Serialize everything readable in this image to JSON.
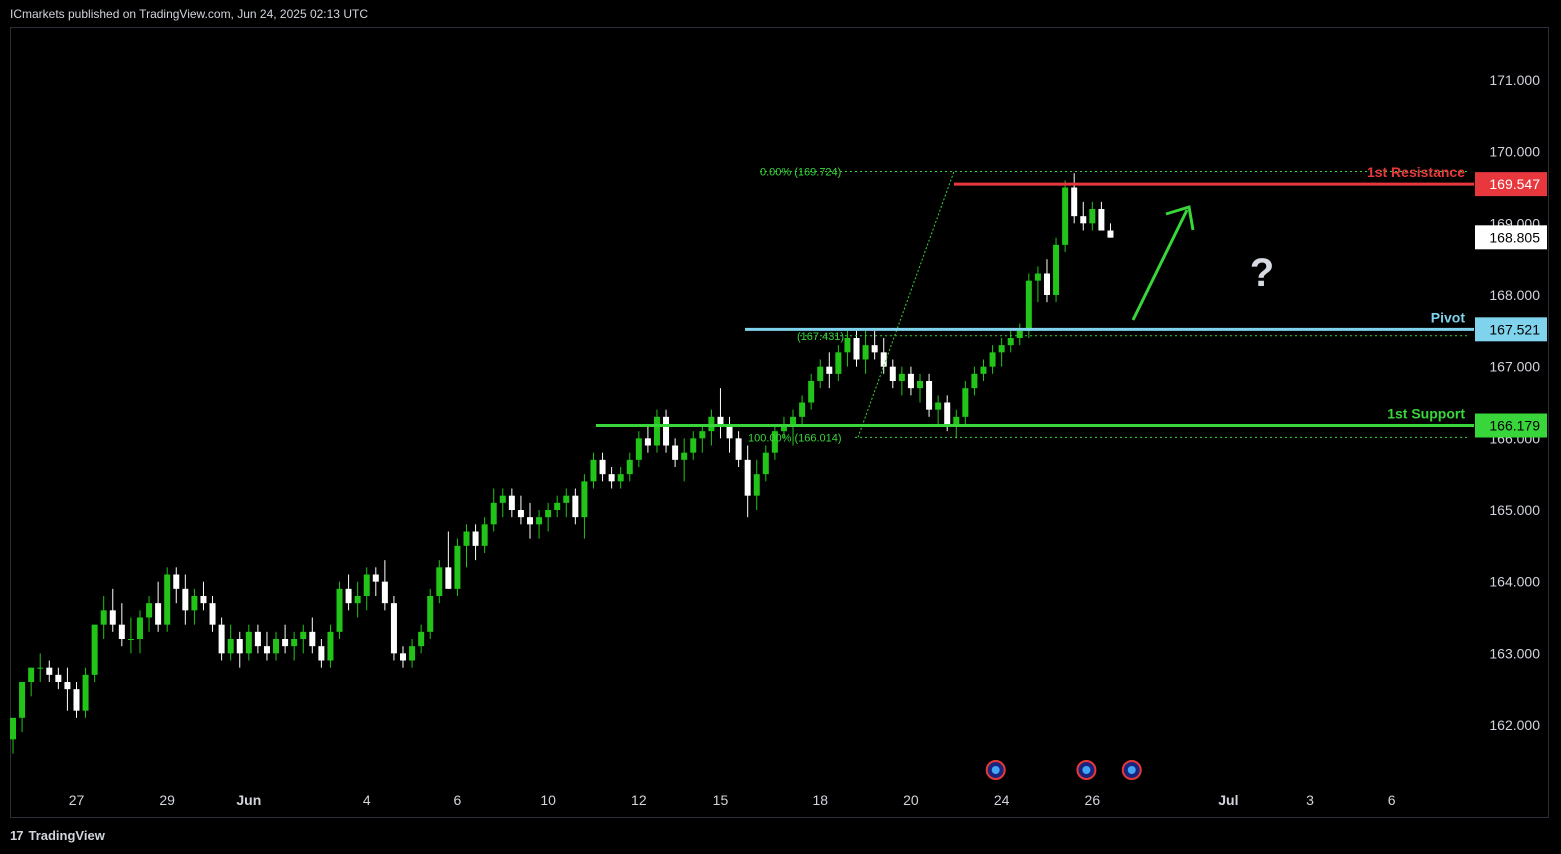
{
  "header": {
    "published": "ICmarkets published on TradingView.com, Jun 24, 2025 02:13 UTC"
  },
  "footer": {
    "brand": "TradingView",
    "brand_mark": "17"
  },
  "colors": {
    "up": "#22c41a",
    "down": "#ffffff",
    "resistance": "#e8383d",
    "pivot": "#7fd3ec",
    "support": "#38d63a",
    "fib": "#38d63a",
    "arrow": "#38d63a",
    "question": "#d7dae3",
    "grid_text": "#d1d4dc"
  },
  "chart_data": {
    "type": "candlestick",
    "y_axis": {
      "ylim": [
        161.5,
        171.8
      ],
      "ticks": [
        "171.000",
        "170.000",
        "169.000",
        "168.000",
        "167.000",
        "166.000",
        "165.000",
        "164.000",
        "163.000",
        "162.000"
      ],
      "tick_values": [
        171,
        170,
        169,
        168,
        167,
        166,
        165,
        164,
        163,
        162
      ]
    },
    "x_axis": {
      "ticks": [
        "27",
        "29",
        "Jun",
        "4",
        "6",
        "10",
        "12",
        "15",
        "18",
        "20",
        "24",
        "26",
        "Jul",
        "3",
        "6"
      ],
      "tick_index": [
        7,
        17,
        26,
        39,
        49,
        59,
        69,
        78,
        89,
        99,
        109,
        119,
        134,
        143,
        152
      ]
    },
    "candles": [
      [
        161.8,
        162.1,
        161.6,
        162.1
      ],
      [
        162.1,
        162.6,
        161.9,
        162.6
      ],
      [
        162.6,
        162.8,
        162.4,
        162.8
      ],
      [
        162.8,
        163.0,
        162.6,
        162.8
      ],
      [
        162.8,
        162.9,
        162.6,
        162.7
      ],
      [
        162.7,
        162.8,
        162.5,
        162.6
      ],
      [
        162.6,
        162.8,
        162.2,
        162.5
      ],
      [
        162.5,
        162.6,
        162.1,
        162.2
      ],
      [
        162.2,
        162.8,
        162.1,
        162.7
      ],
      [
        162.7,
        163.4,
        162.6,
        163.4
      ],
      [
        163.4,
        163.8,
        163.2,
        163.6
      ],
      [
        163.6,
        163.9,
        163.3,
        163.4
      ],
      [
        163.4,
        163.7,
        163.1,
        163.2
      ],
      [
        163.2,
        163.5,
        163.0,
        163.2
      ],
      [
        163.2,
        163.6,
        163.0,
        163.5
      ],
      [
        163.5,
        163.8,
        163.3,
        163.7
      ],
      [
        163.7,
        164.0,
        163.3,
        163.4
      ],
      [
        163.4,
        164.2,
        163.3,
        164.1
      ],
      [
        164.1,
        164.2,
        163.7,
        163.9
      ],
      [
        163.9,
        164.1,
        163.4,
        163.6
      ],
      [
        163.6,
        163.9,
        163.4,
        163.8
      ],
      [
        163.8,
        164.0,
        163.6,
        163.7
      ],
      [
        163.7,
        163.8,
        163.3,
        163.4
      ],
      [
        163.4,
        163.5,
        162.9,
        163.0
      ],
      [
        163.0,
        163.4,
        162.9,
        163.2
      ],
      [
        163.2,
        163.3,
        162.8,
        163.0
      ],
      [
        163.0,
        163.4,
        162.9,
        163.3
      ],
      [
        163.3,
        163.4,
        163.0,
        163.1
      ],
      [
        163.1,
        163.3,
        162.9,
        163.0
      ],
      [
        163.0,
        163.3,
        162.9,
        163.2
      ],
      [
        163.2,
        163.4,
        163.0,
        163.1
      ],
      [
        163.1,
        163.3,
        162.9,
        163.2
      ],
      [
        163.2,
        163.4,
        163.0,
        163.3
      ],
      [
        163.3,
        163.5,
        163.0,
        163.1
      ],
      [
        163.1,
        163.2,
        162.8,
        162.9
      ],
      [
        162.9,
        163.4,
        162.8,
        163.3
      ],
      [
        163.3,
        164.0,
        163.2,
        163.9
      ],
      [
        163.9,
        164.1,
        163.6,
        163.7
      ],
      [
        163.7,
        164.0,
        163.5,
        163.8
      ],
      [
        163.8,
        164.2,
        163.6,
        164.1
      ],
      [
        164.1,
        164.2,
        163.8,
        164.0
      ],
      [
        164.0,
        164.3,
        163.6,
        163.7
      ],
      [
        163.7,
        163.8,
        162.9,
        163.0
      ],
      [
        163.0,
        163.1,
        162.8,
        162.9
      ],
      [
        162.9,
        163.2,
        162.8,
        163.1
      ],
      [
        163.1,
        163.4,
        163.0,
        163.3
      ],
      [
        163.3,
        163.9,
        163.2,
        163.8
      ],
      [
        163.8,
        164.3,
        163.7,
        164.2
      ],
      [
        164.2,
        164.7,
        163.9,
        163.9
      ],
      [
        163.9,
        164.6,
        163.8,
        164.5
      ],
      [
        164.5,
        164.8,
        164.2,
        164.7
      ],
      [
        164.7,
        164.8,
        164.3,
        164.5
      ],
      [
        164.5,
        164.9,
        164.4,
        164.8
      ],
      [
        164.8,
        165.3,
        164.7,
        165.1
      ],
      [
        165.1,
        165.3,
        164.9,
        165.2
      ],
      [
        165.2,
        165.3,
        164.9,
        165.0
      ],
      [
        165.0,
        165.2,
        164.8,
        164.9
      ],
      [
        164.9,
        165.1,
        164.6,
        164.8
      ],
      [
        164.8,
        165.0,
        164.6,
        164.9
      ],
      [
        164.9,
        165.1,
        164.7,
        165.0
      ],
      [
        165.0,
        165.2,
        164.9,
        165.1
      ],
      [
        165.1,
        165.3,
        164.9,
        165.2
      ],
      [
        165.2,
        165.3,
        164.8,
        164.9
      ],
      [
        164.9,
        165.5,
        164.6,
        165.4
      ],
      [
        165.4,
        165.8,
        165.3,
        165.7
      ],
      [
        165.7,
        165.8,
        165.4,
        165.5
      ],
      [
        165.5,
        165.6,
        165.3,
        165.4
      ],
      [
        165.4,
        165.6,
        165.3,
        165.5
      ],
      [
        165.5,
        165.8,
        165.4,
        165.7
      ],
      [
        165.7,
        166.1,
        165.6,
        166.0
      ],
      [
        166.0,
        166.2,
        165.8,
        165.9
      ],
      [
        165.9,
        166.4,
        165.8,
        166.3
      ],
      [
        166.3,
        166.4,
        165.8,
        165.9
      ],
      [
        165.9,
        166.0,
        165.6,
        165.7
      ],
      [
        165.7,
        166.0,
        165.4,
        165.8
      ],
      [
        165.8,
        166.1,
        165.7,
        166.0
      ],
      [
        166.0,
        166.2,
        165.8,
        166.1
      ],
      [
        166.1,
        166.4,
        165.9,
        166.3
      ],
      [
        166.3,
        166.7,
        166.0,
        166.2
      ],
      [
        166.2,
        166.3,
        165.8,
        166.0
      ],
      [
        166.0,
        166.1,
        165.6,
        165.7
      ],
      [
        165.7,
        165.9,
        164.9,
        165.2
      ],
      [
        165.2,
        165.7,
        165.0,
        165.5
      ],
      [
        165.5,
        165.9,
        165.4,
        165.8
      ],
      [
        165.8,
        166.2,
        165.7,
        166.1
      ],
      [
        166.1,
        166.3,
        166.0,
        166.2
      ],
      [
        166.2,
        166.4,
        165.9,
        166.3
      ],
      [
        166.3,
        166.6,
        166.2,
        166.5
      ],
      [
        166.5,
        166.9,
        166.4,
        166.8
      ],
      [
        166.8,
        167.1,
        166.7,
        167.0
      ],
      [
        167.0,
        167.2,
        166.7,
        166.9
      ],
      [
        166.9,
        167.3,
        166.8,
        167.2
      ],
      [
        167.2,
        167.5,
        167.0,
        167.4
      ],
      [
        167.4,
        167.5,
        167.0,
        167.1
      ],
      [
        167.1,
        167.5,
        166.9,
        167.3
      ],
      [
        167.3,
        167.5,
        167.1,
        167.2
      ],
      [
        167.2,
        167.4,
        166.9,
        167.0
      ],
      [
        167.0,
        167.1,
        166.7,
        166.8
      ],
      [
        166.8,
        167.0,
        166.6,
        166.9
      ],
      [
        166.9,
        167.0,
        166.6,
        166.7
      ],
      [
        166.7,
        166.9,
        166.5,
        166.8
      ],
      [
        166.8,
        166.9,
        166.3,
        166.4
      ],
      [
        166.4,
        166.6,
        166.2,
        166.5
      ],
      [
        166.5,
        166.6,
        166.1,
        166.2
      ],
      [
        166.2,
        166.4,
        166.0,
        166.3
      ],
      [
        166.3,
        166.8,
        166.2,
        166.7
      ],
      [
        166.7,
        167.0,
        166.6,
        166.9
      ],
      [
        166.9,
        167.1,
        166.8,
        167.0
      ],
      [
        167.0,
        167.3,
        166.9,
        167.2
      ],
      [
        167.2,
        167.4,
        167.0,
        167.3
      ],
      [
        167.3,
        167.5,
        167.2,
        167.4
      ],
      [
        167.4,
        167.6,
        167.3,
        167.5
      ],
      [
        167.5,
        168.3,
        167.4,
        168.2
      ],
      [
        168.2,
        168.4,
        167.9,
        168.3
      ],
      [
        168.3,
        168.5,
        167.9,
        168.0
      ],
      [
        168.0,
        168.8,
        167.9,
        168.7
      ],
      [
        168.7,
        169.6,
        168.6,
        169.5
      ],
      [
        169.5,
        169.7,
        169.0,
        169.1
      ],
      [
        169.1,
        169.3,
        168.9,
        169.0
      ],
      [
        169.0,
        169.3,
        168.9,
        169.2
      ],
      [
        169.2,
        169.3,
        168.9,
        168.9
      ],
      [
        168.9,
        169.0,
        168.8,
        168.8
      ]
    ],
    "annotations": {
      "resistance": {
        "label": "1st Resistance",
        "value": "169.547",
        "y": 169.547
      },
      "current_price": {
        "value": "168.805",
        "y": 168.805
      },
      "pivot": {
        "label": "Pivot",
        "value": "167.521",
        "y": 167.521
      },
      "support": {
        "label": "1st Support",
        "value": "166.179",
        "y": 166.179
      },
      "fib": [
        {
          "label": "0.00% (169.724)",
          "y": 169.724
        },
        {
          "label": "(167.431)",
          "y": 167.431
        },
        {
          "label": "100.00% (166.014)",
          "y": 166.014
        }
      ],
      "question_mark": "?"
    }
  }
}
